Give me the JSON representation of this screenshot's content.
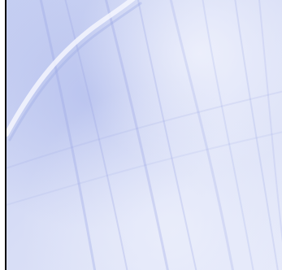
{
  "image": {
    "kind": "abstract-wallpaper-texture",
    "colors": {
      "base": "#d6dcf4",
      "light": "#eef0fb",
      "mid": "#b8c2ee",
      "dark": "#8e9ce3",
      "edge": "#000000"
    },
    "shapes": [
      "curved-highlight-streak",
      "diagonal-streaks",
      "soft-clouds"
    ]
  }
}
